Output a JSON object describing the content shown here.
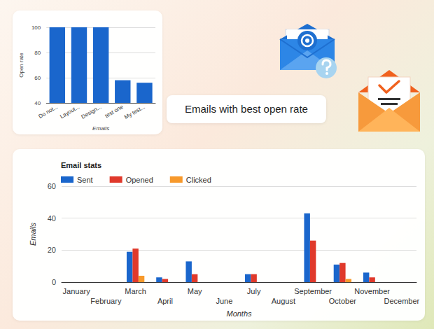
{
  "chart_data": [
    {
      "type": "bar",
      "annotation": "Emails with best open rate",
      "categories": [
        "Do not...",
        "Layout...",
        "Design...",
        "test one",
        "My test..."
      ],
      "values": [
        100,
        100,
        100,
        58,
        56
      ],
      "color": "#1a66cc",
      "x_label": "Emails",
      "y_label": "Open rate",
      "ylim": [
        40,
        100
      ],
      "yticks": [
        40,
        60,
        80,
        100
      ],
      "grid": true
    },
    {
      "type": "bar",
      "title": "Email stats",
      "categories": [
        "January",
        "February",
        "March",
        "April",
        "May",
        "June",
        "July",
        "August",
        "September",
        "October",
        "November",
        "December"
      ],
      "series": [
        {
          "name": "Sent",
          "color": "#1a66cc",
          "values": [
            0,
            0,
            19,
            3,
            13,
            0,
            5,
            0,
            43,
            11,
            6,
            0
          ]
        },
        {
          "name": "Opened",
          "color": "#e0392b",
          "values": [
            0,
            0,
            21,
            2,
            5,
            0,
            5,
            0,
            26,
            12,
            3,
            0
          ]
        },
        {
          "name": "Clicked",
          "color": "#f7992b",
          "values": [
            0,
            0,
            4,
            0,
            0,
            0,
            0,
            0,
            0,
            2,
            0,
            0
          ]
        }
      ],
      "x_label": "Months",
      "y_label": "Emails",
      "ylim": [
        0,
        60
      ],
      "yticks": [
        0,
        20,
        40,
        60
      ],
      "grid": true,
      "legend": "top-left"
    }
  ]
}
